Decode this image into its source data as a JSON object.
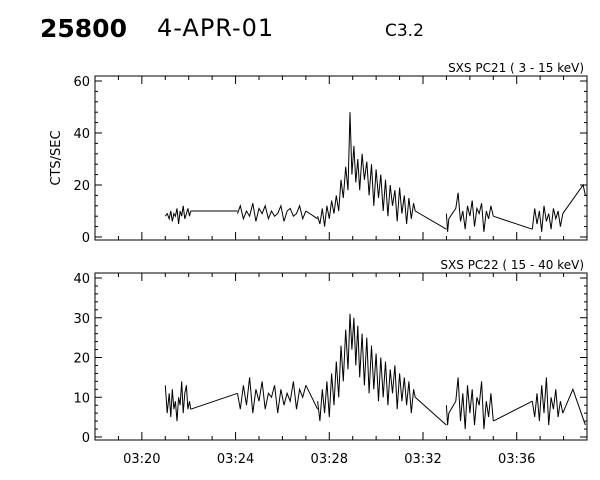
{
  "header": {
    "event_id": "25800",
    "date": "4-APR-01",
    "flare_class": "C3.2"
  },
  "chart_data": [
    {
      "type": "line",
      "title": "SXS PC21  (  3 - 15 keV)",
      "ylabel": "CTS/SEC",
      "xlabel": "",
      "xlim": [
        "03:18",
        "03:39"
      ],
      "ylim": [
        0,
        60
      ],
      "yticks": [
        0,
        20,
        40,
        60
      ],
      "xticks": [
        "03:20",
        "03:24",
        "03:28",
        "03:32",
        "03:36"
      ],
      "grid": false,
      "segments": [
        {
          "x": [
            "03:21:00",
            "03:21:05",
            "03:21:10",
            "03:21:14",
            "03:21:18",
            "03:21:22",
            "03:21:26",
            "03:21:30",
            "03:21:34",
            "03:21:38",
            "03:21:42",
            "03:21:46",
            "03:21:50",
            "03:21:54",
            "03:21:58",
            "03:22:02",
            "03:22:05"
          ],
          "y": [
            8,
            9,
            7,
            10,
            6,
            9,
            8,
            11,
            5,
            10,
            8,
            12,
            7,
            9,
            11,
            8,
            10
          ]
        },
        {
          "x": [
            "03:22:05",
            "03:24:05"
          ],
          "y": [
            10,
            10
          ]
        },
        {
          "x": [
            "03:24:05",
            "03:24:12",
            "03:24:20",
            "03:24:28",
            "03:24:36",
            "03:24:44",
            "03:24:52",
            "03:25:00",
            "03:25:08",
            "03:25:16",
            "03:25:24",
            "03:25:32",
            "03:25:40",
            "03:25:48",
            "03:25:56",
            "03:26:04",
            "03:26:12",
            "03:26:20",
            "03:26:28",
            "03:26:36",
            "03:26:44",
            "03:26:52",
            "03:27:00"
          ],
          "y": [
            9,
            12,
            7,
            10,
            8,
            13,
            6,
            11,
            9,
            12,
            7,
            10,
            8,
            9,
            12,
            6,
            10,
            11,
            8,
            9,
            12,
            7,
            10
          ]
        },
        {
          "x": [
            "03:27:00",
            "03:27:30"
          ],
          "y": [
            10,
            7
          ]
        },
        {
          "x": [
            "03:27:30",
            "03:27:36",
            "03:27:42",
            "03:27:48",
            "03:27:54",
            "03:28:00",
            "03:28:06",
            "03:28:12",
            "03:28:18",
            "03:28:24",
            "03:28:30",
            "03:28:36",
            "03:28:42",
            "03:28:48",
            "03:28:53",
            "03:28:58",
            "03:29:03",
            "03:29:08",
            "03:29:13",
            "03:29:18",
            "03:29:24",
            "03:29:30",
            "03:29:36",
            "03:29:42",
            "03:29:48",
            "03:29:54",
            "03:30:00",
            "03:30:06",
            "03:30:12",
            "03:30:18",
            "03:30:24",
            "03:30:30",
            "03:30:36",
            "03:30:42",
            "03:30:48",
            "03:30:54",
            "03:31:00",
            "03:31:06",
            "03:31:12",
            "03:31:18",
            "03:31:24",
            "03:31:30",
            "03:31:36",
            "03:31:40"
          ],
          "y": [
            8,
            5,
            11,
            4,
            12,
            7,
            14,
            9,
            16,
            10,
            22,
            15,
            27,
            18,
            48,
            24,
            35,
            21,
            30,
            18,
            32,
            22,
            29,
            16,
            28,
            12,
            26,
            15,
            24,
            10,
            22,
            8,
            20,
            12,
            18,
            6,
            19,
            9,
            16,
            5,
            15,
            7,
            13,
            10
          ]
        },
        {
          "x": [
            "03:31:40",
            "03:33:00"
          ],
          "y": [
            10,
            3
          ]
        },
        {
          "x": [
            "03:33:00",
            "03:33:03",
            "03:33:06"
          ],
          "y": [
            9,
            2,
            7
          ]
        },
        {
          "x": [
            "03:33:06",
            "03:33:24"
          ],
          "y": [
            7,
            11
          ]
        },
        {
          "x": [
            "03:33:24",
            "03:33:30",
            "03:33:36",
            "03:33:42",
            "03:33:48",
            "03:33:54",
            "03:34:00",
            "03:34:06",
            "03:34:12",
            "03:34:18",
            "03:34:24",
            "03:34:30",
            "03:34:36",
            "03:34:42",
            "03:34:48",
            "03:34:54",
            "03:35:00"
          ],
          "y": [
            11,
            17,
            6,
            10,
            3,
            12,
            8,
            14,
            4,
            11,
            9,
            13,
            2,
            10,
            7,
            12,
            8
          ]
        },
        {
          "x": [
            "03:35:00",
            "03:36:40"
          ],
          "y": [
            8,
            3
          ]
        },
        {
          "x": [
            "03:36:40",
            "03:36:46",
            "03:36:52",
            "03:36:58",
            "03:37:04",
            "03:37:10",
            "03:37:16",
            "03:37:22",
            "03:37:28",
            "03:37:34",
            "03:37:40",
            "03:37:46",
            "03:37:52",
            "03:37:58"
          ],
          "y": [
            3,
            11,
            5,
            10,
            2,
            12,
            6,
            9,
            3,
            11,
            7,
            10,
            4,
            9
          ]
        },
        {
          "x": [
            "03:37:58",
            "03:38:50",
            "03:38:56"
          ],
          "y": [
            9,
            20,
            16
          ]
        }
      ]
    },
    {
      "type": "line",
      "title": "SXS PC22  ( 15 - 40 keV)",
      "ylabel": "",
      "xlabel": "",
      "xlim": [
        "03:18",
        "03:39"
      ],
      "ylim": [
        0,
        40
      ],
      "yticks": [
        0,
        10,
        20,
        30,
        40
      ],
      "xticks": [
        "03:20",
        "03:24",
        "03:28",
        "03:32",
        "03:36"
      ],
      "grid": false,
      "segments": [
        {
          "x": [
            "03:21:00",
            "03:21:05",
            "03:21:10",
            "03:21:14",
            "03:21:18",
            "03:21:22",
            "03:21:26",
            "03:21:30",
            "03:21:34",
            "03:21:38",
            "03:21:42",
            "03:21:46",
            "03:21:50",
            "03:21:54",
            "03:21:58",
            "03:22:02",
            "03:22:05"
          ],
          "y": [
            13,
            6,
            11,
            5,
            12,
            7,
            9,
            4,
            10,
            8,
            14,
            6,
            11,
            13,
            7,
            9,
            7
          ]
        },
        {
          "x": [
            "03:22:05",
            "03:24:05"
          ],
          "y": [
            7,
            11
          ]
        },
        {
          "x": [
            "03:24:05",
            "03:24:12",
            "03:24:20",
            "03:24:28",
            "03:24:36",
            "03:24:44",
            "03:24:52",
            "03:25:00",
            "03:25:08",
            "03:25:16",
            "03:25:24",
            "03:25:32",
            "03:25:40",
            "03:25:48",
            "03:25:56",
            "03:26:04",
            "03:26:12",
            "03:26:20",
            "03:26:28",
            "03:26:36",
            "03:26:44",
            "03:26:52",
            "03:27:00"
          ],
          "y": [
            11,
            7,
            13,
            8,
            15,
            6,
            12,
            9,
            14,
            7,
            11,
            10,
            13,
            6,
            12,
            8,
            11,
            9,
            14,
            7,
            12,
            10,
            13
          ]
        },
        {
          "x": [
            "03:27:00",
            "03:27:30"
          ],
          "y": [
            13,
            7
          ]
        },
        {
          "x": [
            "03:27:30",
            "03:27:36",
            "03:27:42",
            "03:27:48",
            "03:27:54",
            "03:28:00",
            "03:28:06",
            "03:28:12",
            "03:28:18",
            "03:28:24",
            "03:28:30",
            "03:28:36",
            "03:28:42",
            "03:28:48",
            "03:28:53",
            "03:28:58",
            "03:29:03",
            "03:29:08",
            "03:29:13",
            "03:29:18",
            "03:29:24",
            "03:29:30",
            "03:29:36",
            "03:29:42",
            "03:29:48",
            "03:29:54",
            "03:30:00",
            "03:30:06",
            "03:30:12",
            "03:30:18",
            "03:30:24",
            "03:30:30",
            "03:30:36",
            "03:30:42",
            "03:30:48",
            "03:30:54",
            "03:31:00",
            "03:31:06",
            "03:31:12",
            "03:31:18",
            "03:31:24",
            "03:31:30",
            "03:31:36",
            "03:31:40"
          ],
          "y": [
            9,
            4,
            12,
            6,
            14,
            5,
            16,
            8,
            19,
            10,
            23,
            14,
            27,
            17,
            31,
            22,
            30,
            18,
            28,
            15,
            26,
            13,
            25,
            11,
            23,
            12,
            21,
            9,
            20,
            10,
            19,
            8,
            17,
            11,
            18,
            7,
            16,
            9,
            15,
            8,
            14,
            6,
            12,
            10
          ]
        },
        {
          "x": [
            "03:31:40",
            "03:33:00"
          ],
          "y": [
            10,
            3
          ]
        },
        {
          "x": [
            "03:33:00",
            "03:33:03",
            "03:33:06"
          ],
          "y": [
            8,
            3,
            6
          ]
        },
        {
          "x": [
            "03:33:06",
            "03:33:24"
          ],
          "y": [
            6,
            9
          ]
        },
        {
          "x": [
            "03:33:24",
            "03:33:30",
            "03:33:36",
            "03:33:42",
            "03:33:48",
            "03:33:54",
            "03:34:00",
            "03:34:06",
            "03:34:12",
            "03:34:18",
            "03:34:24",
            "03:34:30",
            "03:34:36",
            "03:34:42",
            "03:34:48",
            "03:34:54",
            "03:35:00"
          ],
          "y": [
            9,
            15,
            4,
            11,
            2,
            13,
            6,
            12,
            3,
            10,
            8,
            14,
            2,
            9,
            5,
            11,
            4
          ]
        },
        {
          "x": [
            "03:35:00",
            "03:36:40"
          ],
          "y": [
            4,
            9
          ]
        },
        {
          "x": [
            "03:36:40",
            "03:36:46",
            "03:36:52",
            "03:36:58",
            "03:37:04",
            "03:37:10",
            "03:37:16",
            "03:37:22",
            "03:37:28",
            "03:37:34",
            "03:37:40",
            "03:37:46",
            "03:37:52",
            "03:37:58"
          ],
          "y": [
            9,
            5,
            11,
            4,
            13,
            6,
            15,
            3,
            10,
            7,
            12,
            5,
            9,
            6
          ]
        },
        {
          "x": [
            "03:37:58",
            "03:38:24",
            "03:38:56"
          ],
          "y": [
            6,
            12,
            3
          ]
        }
      ]
    }
  ]
}
